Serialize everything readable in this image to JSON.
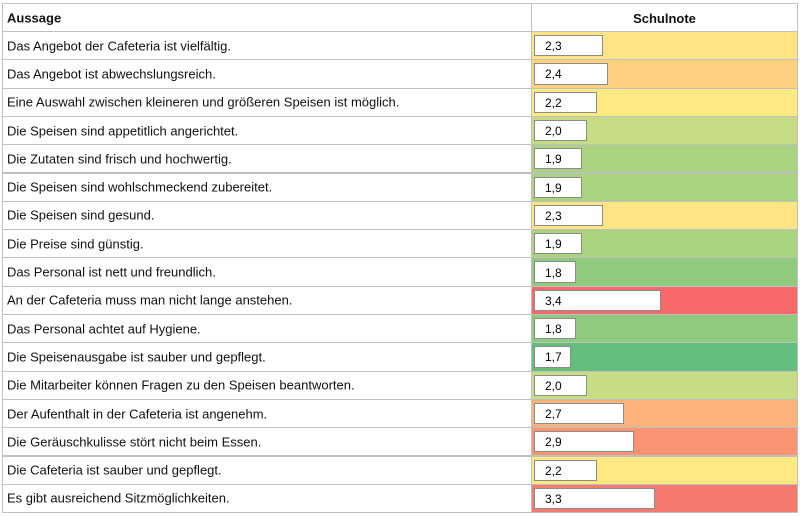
{
  "chart_data": {
    "type": "bar",
    "orientation": "horizontal",
    "category_header": "Aussage",
    "value_header": "Schulnote",
    "categories": [
      "Das Angebot der Cafeteria ist vielfältig.",
      "Das Angebot ist abwechslungsreich.",
      "Eine Auswahl zwischen kleineren und größeren Speisen ist möglich.",
      "Die Speisen sind appetitlich angerichtet.",
      "Die Zutaten sind frisch und hochwertig.",
      "Die Speisen sind wohlschmeckend zubereitet.",
      "Die Speisen sind gesund.",
      "Die Preise sind günstig.",
      "Das Personal ist nett und freundlich.",
      "An der Cafeteria muss man nicht lange anstehen.",
      "Das Personal achtet auf Hygiene.",
      "Die Speisenausgabe ist sauber und gepflegt.",
      "Die Mitarbeiter können Fragen zu den Speisen beantworten.",
      "Der Aufenthalt in der Cafeteria ist angenehm.",
      "Die Geräuschkulisse stört nicht beim Essen.",
      "Die Cafeteria ist sauber und gepflegt.",
      "Es gibt ausreichend Sitzmöglichkeiten."
    ],
    "values": [
      2.3,
      2.4,
      2.2,
      2.0,
      1.9,
      1.9,
      2.3,
      1.9,
      1.8,
      3.4,
      1.8,
      1.7,
      2.0,
      2.7,
      2.9,
      2.2,
      3.3
    ],
    "value_labels": [
      "2,3",
      "2,4",
      "2,2",
      "2,0",
      "1,9",
      "1,9",
      "2,3",
      "1,9",
      "1,8",
      "3,4",
      "1,8",
      "1,7",
      "2,0",
      "2,7",
      "2,9",
      "2,2",
      "3,3"
    ],
    "colors": [
      "#ffe484",
      "#fdd17f",
      "#fee983",
      "#c6dd84",
      "#aad380",
      "#aad380",
      "#ffe484",
      "#aad380",
      "#8fca7e",
      "#f8696b",
      "#8fca7e",
      "#63be7b",
      "#c6dd84",
      "#fcb279",
      "#fa9473",
      "#fee983",
      "#f77a6e"
    ],
    "bar_color": "#ffffff",
    "xlim": [
      1,
      6
    ]
  }
}
